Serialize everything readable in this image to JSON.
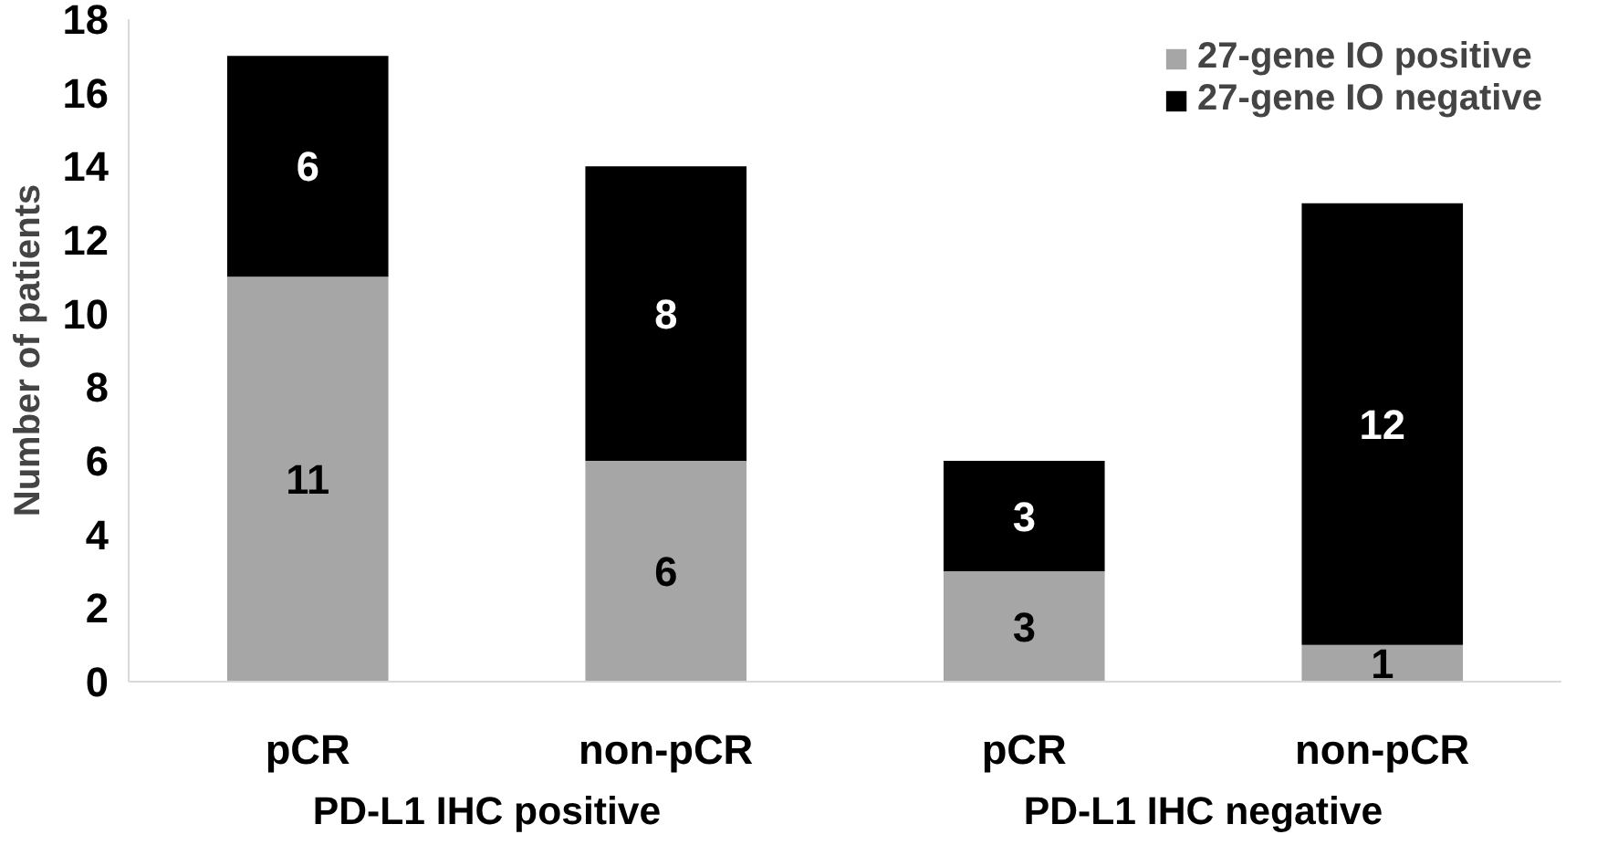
{
  "chart_data": {
    "type": "bar",
    "stacked": true,
    "ylabel": "Number of patients",
    "categories": [
      "pCR",
      "non-pCR",
      "pCR",
      "non-pCR"
    ],
    "series": [
      {
        "name": "27-gene IO positive",
        "color": "#a6a6a6",
        "values": [
          11,
          6,
          3,
          1
        ]
      },
      {
        "name": "27-gene IO negative",
        "color": "#000000",
        "values": [
          6,
          8,
          3,
          12
        ]
      }
    ],
    "ylim": [
      0,
      18
    ],
    "yticks": [
      0,
      2,
      4,
      6,
      8,
      10,
      12,
      14,
      16,
      18
    ],
    "annotations": [
      "PD-L1 IHC positive",
      "PD-L1 IHC negative"
    ],
    "data_labels": true,
    "legend": "top right",
    "grid": false
  }
}
